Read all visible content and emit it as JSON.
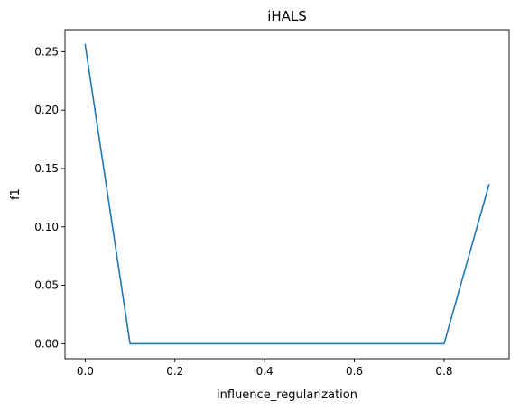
{
  "chart_data": {
    "type": "line",
    "title": "iHALS",
    "xlabel": "influence_regularization",
    "ylabel": "f1",
    "xlim": [
      -0.045,
      0.945
    ],
    "ylim": [
      -0.0128,
      0.2688
    ],
    "x_ticks": [
      0.0,
      0.2,
      0.4,
      0.6,
      0.8
    ],
    "x_tick_labels": [
      "0.0",
      "0.2",
      "0.4",
      "0.6",
      "0.8"
    ],
    "y_ticks": [
      0.0,
      0.05,
      0.1,
      0.15,
      0.2,
      0.25
    ],
    "y_tick_labels": [
      "0.00",
      "0.05",
      "0.10",
      "0.15",
      "0.20",
      "0.25"
    ],
    "grid": false,
    "series": [
      {
        "color": "#1f77b4",
        "x": [
          0.0,
          0.1,
          0.2,
          0.3,
          0.4,
          0.5,
          0.6,
          0.7,
          0.8,
          0.9
        ],
        "y": [
          0.256,
          0.0,
          0.0,
          0.0,
          0.0,
          0.0,
          0.0,
          0.0,
          0.0,
          0.136
        ]
      }
    ]
  }
}
